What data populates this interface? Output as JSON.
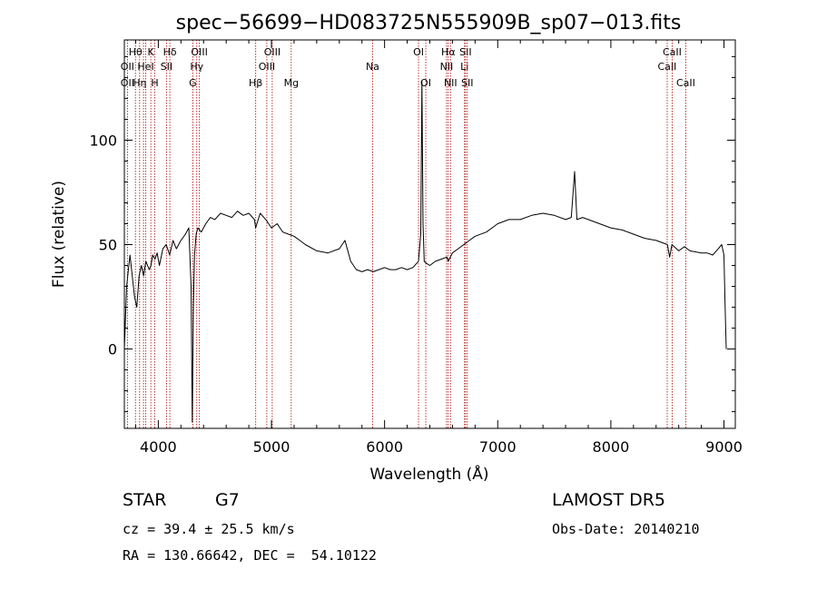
{
  "chart_data": {
    "type": "line",
    "title": "spec−56699−HD083725N555909B_sp07−013.fits",
    "xlabel": "Wavelength (Å)",
    "ylabel": "Flux (relative)",
    "xlim": [
      3700,
      9100
    ],
    "ylim": [
      -38,
      148
    ],
    "xticks": [
      4000,
      5000,
      6000,
      7000,
      8000,
      9000
    ],
    "yticks": [
      0,
      50,
      100
    ],
    "grid": false,
    "series": [
      {
        "color": "#000000",
        "x": [
          3700,
          3720,
          3750,
          3770,
          3790,
          3810,
          3830,
          3850,
          3870,
          3890,
          3920,
          3935,
          3950,
          3970,
          3990,
          4010,
          4040,
          4070,
          4100,
          4130,
          4160,
          4200,
          4240,
          4270,
          4290,
          4300,
          4310,
          4320,
          4335,
          4350,
          4380,
          4420,
          4460,
          4500,
          4550,
          4600,
          4650,
          4700,
          4750,
          4800,
          4850,
          4860,
          4900,
          4950,
          5000,
          5050,
          5100,
          5150,
          5200,
          5250,
          5300,
          5400,
          5500,
          5600,
          5650,
          5700,
          5750,
          5800,
          5850,
          5900,
          5950,
          6000,
          6050,
          6100,
          6150,
          6200,
          6250,
          6300,
          6320,
          6330,
          6340,
          6350,
          6370,
          6400,
          6450,
          6500,
          6550,
          6563,
          6600,
          6650,
          6700,
          6750,
          6800,
          6900,
          7000,
          7100,
          7200,
          7300,
          7400,
          7500,
          7600,
          7650,
          7680,
          7700,
          7750,
          7800,
          7900,
          8000,
          8100,
          8200,
          8300,
          8400,
          8500,
          8520,
          8540,
          8600,
          8650,
          8700,
          8800,
          8850,
          8900,
          8950,
          8980,
          9000,
          9010,
          9020
        ],
        "y": [
          0,
          30,
          45,
          35,
          25,
          20,
          35,
          40,
          35,
          42,
          38,
          40,
          45,
          43,
          46,
          40,
          48,
          50,
          45,
          52,
          48,
          52,
          55,
          58,
          30,
          -35,
          20,
          45,
          55,
          58,
          56,
          60,
          63,
          62,
          65,
          64,
          63,
          66,
          64,
          65,
          62,
          58,
          65,
          62,
          58,
          60,
          56,
          55,
          54,
          52,
          50,
          47,
          46,
          48,
          52,
          42,
          38,
          37,
          38,
          37,
          38,
          39,
          38,
          38,
          39,
          38,
          39,
          42,
          55,
          128,
          60,
          42,
          41,
          40,
          42,
          43,
          44,
          42,
          46,
          48,
          50,
          52,
          54,
          56,
          60,
          62,
          62,
          64,
          65,
          64,
          62,
          63,
          85,
          62,
          63,
          62,
          60,
          58,
          57,
          55,
          53,
          52,
          50,
          44,
          50,
          47,
          49,
          47,
          46,
          46,
          45,
          48,
          50,
          45,
          20,
          0
        ]
      }
    ],
    "lines": [
      {
        "x": 3727,
        "labels": [
          "",
          "OII",
          "OII"
        ]
      },
      {
        "x": 3798,
        "labels": [
          "Hθ",
          "",
          ""
        ]
      },
      {
        "x": 3835,
        "labels": [
          "",
          "",
          "Hη"
        ]
      },
      {
        "x": 3869,
        "labels": [
          "",
          "",
          ""
        ]
      },
      {
        "x": 3889,
        "labels": [
          "",
          "HeI",
          ""
        ]
      },
      {
        "x": 3934,
        "labels": [
          "K",
          "",
          ""
        ]
      },
      {
        "x": 3969,
        "labels": [
          "",
          "",
          "H"
        ]
      },
      {
        "x": 4072,
        "labels": [
          "",
          "SII",
          ""
        ]
      },
      {
        "x": 4102,
        "labels": [
          "Hδ",
          "",
          ""
        ]
      },
      {
        "x": 4305,
        "labels": [
          "",
          "",
          "G"
        ]
      },
      {
        "x": 4340,
        "labels": [
          "",
          "Hγ",
          ""
        ]
      },
      {
        "x": 4363,
        "labels": [
          "OIII",
          "",
          ""
        ]
      },
      {
        "x": 4861,
        "labels": [
          "",
          "",
          "Hβ"
        ]
      },
      {
        "x": 4959,
        "labels": [
          "",
          "OIII",
          ""
        ]
      },
      {
        "x": 5007,
        "labels": [
          "OIII",
          "",
          ""
        ]
      },
      {
        "x": 5175,
        "labels": [
          "",
          "",
          "Mg"
        ]
      },
      {
        "x": 5894,
        "labels": [
          "",
          "Na",
          ""
        ]
      },
      {
        "x": 6300,
        "labels": [
          "OI",
          "",
          ""
        ]
      },
      {
        "x": 6364,
        "labels": [
          "",
          "",
          "OI"
        ]
      },
      {
        "x": 6548,
        "labels": [
          "",
          "NII",
          ""
        ]
      },
      {
        "x": 6563,
        "labels": [
          "Hα",
          "",
          ""
        ]
      },
      {
        "x": 6583,
        "labels": [
          "",
          "",
          "NII"
        ]
      },
      {
        "x": 6707,
        "labels": [
          "",
          "Li",
          ""
        ]
      },
      {
        "x": 6716,
        "labels": [
          "SII",
          "",
          ""
        ]
      },
      {
        "x": 6731,
        "labels": [
          "",
          "",
          "SII"
        ]
      },
      {
        "x": 8498,
        "labels": [
          "",
          "CaII",
          ""
        ]
      },
      {
        "x": 8542,
        "labels": [
          "CaII",
          "",
          ""
        ]
      },
      {
        "x": 8662,
        "labels": [
          "",
          "",
          "CaII"
        ]
      }
    ]
  },
  "info": {
    "object_class": "STAR",
    "subclass": "G7",
    "survey": "LAMOST DR5",
    "cz": "cz = 39.4 ± 25.5 km/s",
    "obs_date": "Obs-Date: 20140210",
    "coords": "RA = 130.66642, DEC =  54.10122"
  }
}
